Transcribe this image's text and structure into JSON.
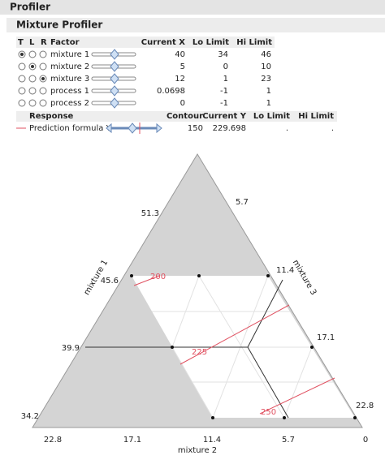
{
  "header": {
    "title": "Profiler",
    "subtitle": "Mixture Profiler"
  },
  "factors_table": {
    "columns": [
      "T",
      "L",
      "R",
      "Factor",
      "Current X",
      "Lo Limit",
      "Hi Limit"
    ],
    "rows": [
      [
        "mixture 1",
        "40",
        "34",
        "46"
      ],
      [
        "mixture 2",
        "5",
        "0",
        "10"
      ],
      [
        "mixture 3",
        "12",
        "1",
        "23"
      ],
      [
        "process 1",
        "0.0698",
        "-1",
        "1"
      ],
      [
        "process 2",
        "0",
        "-1",
        "1"
      ]
    ]
  },
  "response_table": {
    "columns": [
      "Response",
      "Contour",
      "Current Y",
      "Lo Limit",
      "Hi Limit"
    ],
    "rows": [
      [
        "Prediction formula Y",
        "150",
        "229.698",
        ".",
        "."
      ]
    ]
  },
  "ternary": {
    "axis_labels": [
      "mixture 1",
      "mixture 2",
      "mixture 3"
    ],
    "left_ticks": [
      "51.3",
      "45.6",
      "39.9",
      "34.2"
    ],
    "bottom_ticks": [
      "22.8",
      "17.1",
      "11.4",
      "5.7",
      "0"
    ],
    "right_ticks": [
      "5.7",
      "11.4",
      "17.1",
      "22.8"
    ],
    "contour_labels": [
      "200",
      "225",
      "250"
    ]
  }
}
